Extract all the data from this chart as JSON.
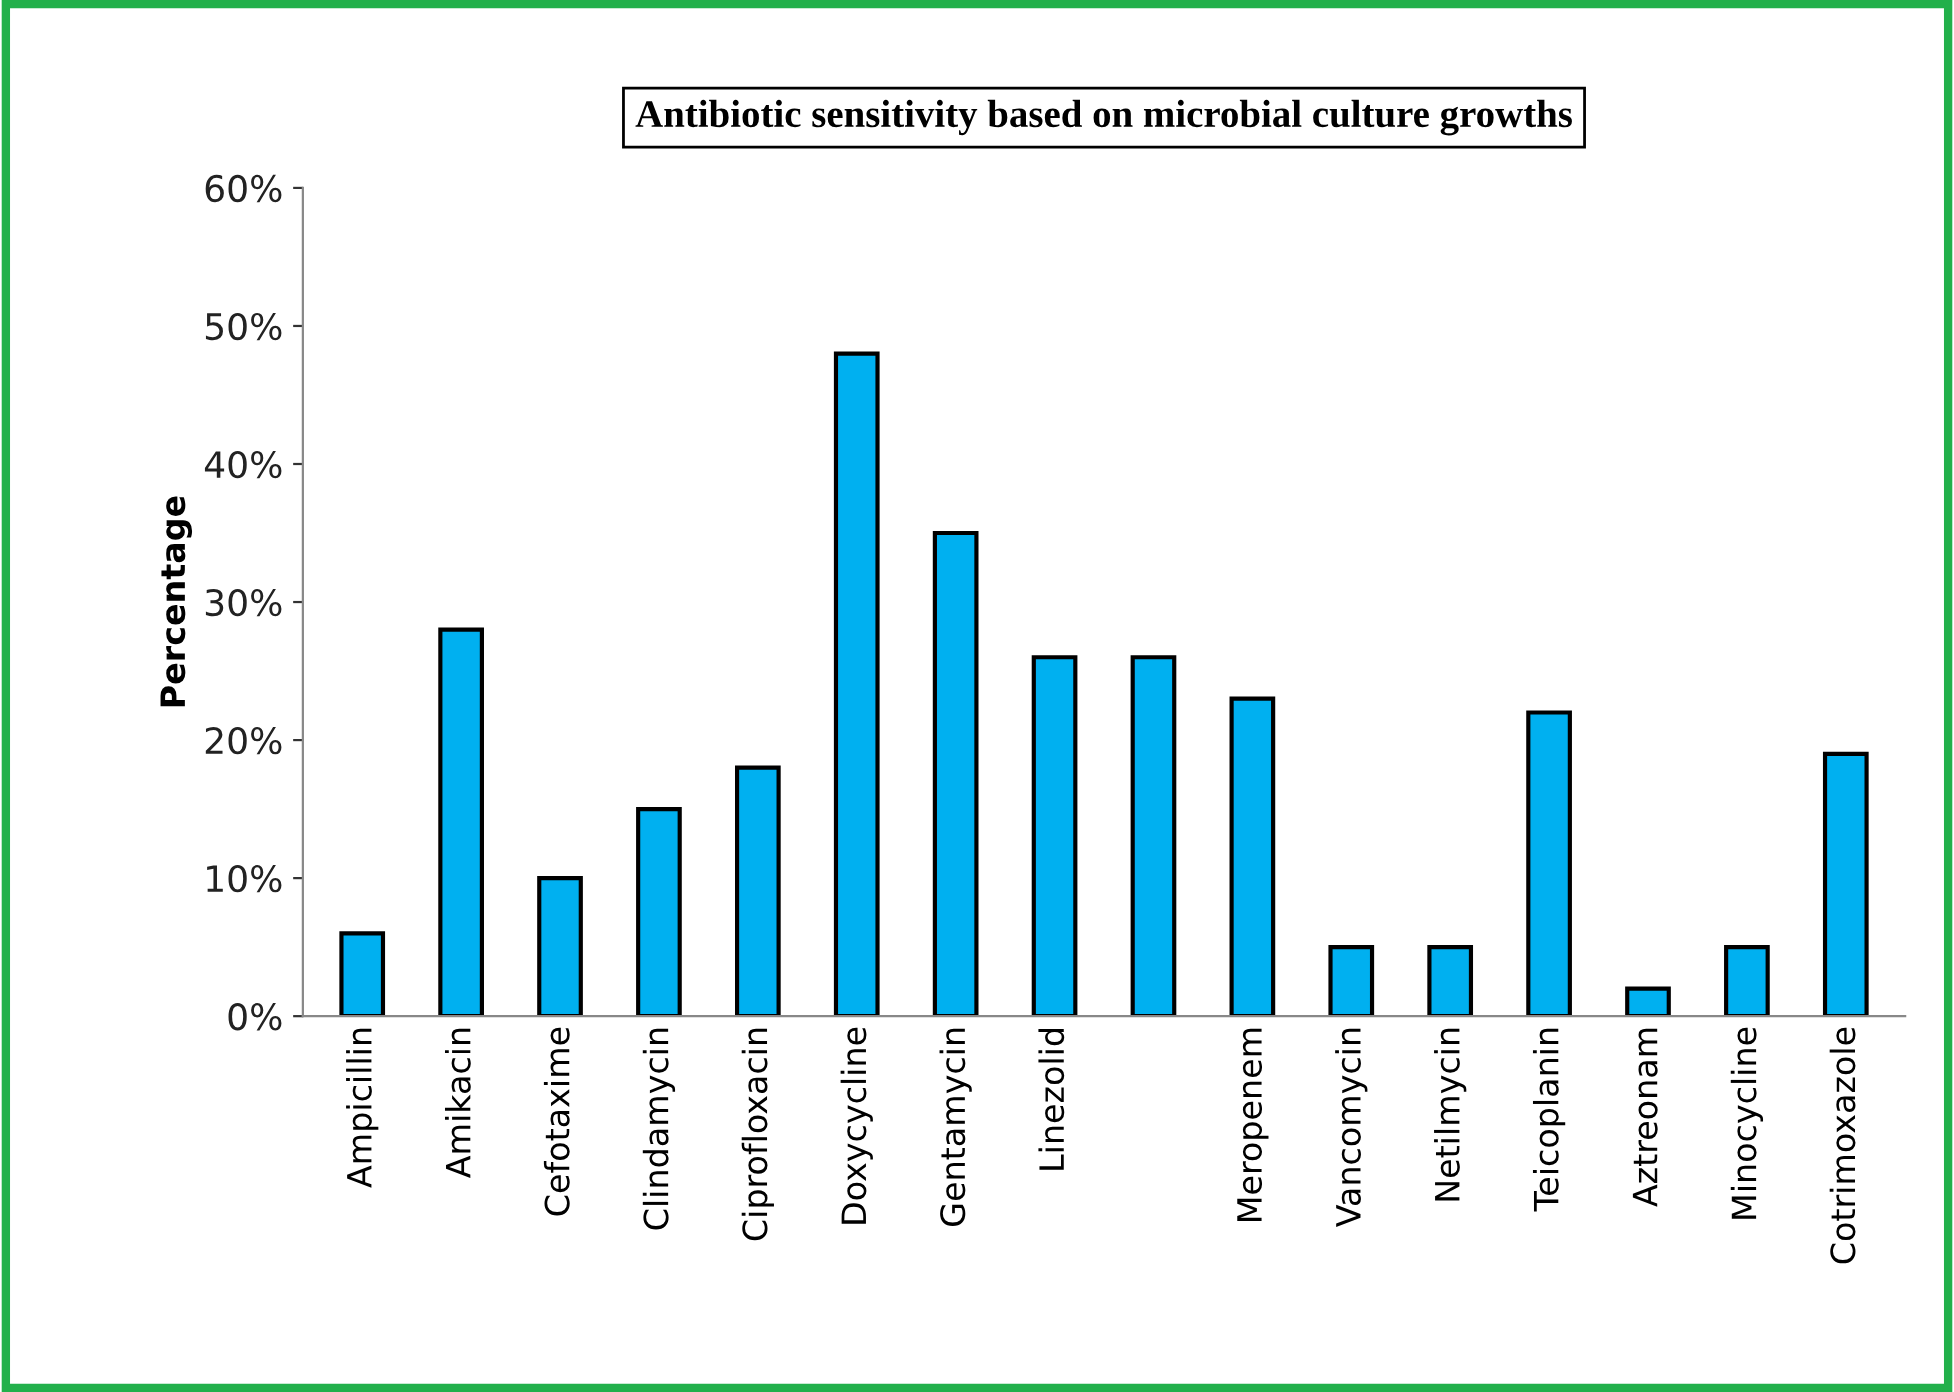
{
  "chart_data": {
    "type": "bar",
    "title": "Antibiotic sensitivity based on microbial culture growths",
    "ylabel": "Percentage",
    "categories": [
      "Ampicillin",
      "Amikacin",
      "Cefotaxime",
      "Clindamycin",
      "Ciprofloxacin",
      "Doxycycline",
      "Gentamycin",
      "Linezolid",
      null,
      "Meropenem",
      "Vancomycin",
      "Netilmycin",
      "Teicoplanin",
      "Aztreonam",
      "Minocycline",
      "Cotrimoxazole"
    ],
    "values": [
      6,
      28,
      10,
      15,
      18,
      48,
      35,
      26,
      26,
      23,
      5,
      5,
      22,
      2,
      5,
      19
    ],
    "color": "#00b0f0",
    "ylim": [
      0,
      60
    ],
    "yticks": [
      {
        "value": 0,
        "label": "0%"
      },
      {
        "value": 10,
        "label": "10%"
      },
      {
        "value": 20,
        "label": "20%"
      },
      {
        "value": 30,
        "label": "30%"
      },
      {
        "value": 40,
        "label": "40%"
      },
      {
        "value": 50,
        "label": "50%"
      },
      {
        "value": 60,
        "label": "60%"
      }
    ],
    "grid": false,
    "legend": false
  }
}
